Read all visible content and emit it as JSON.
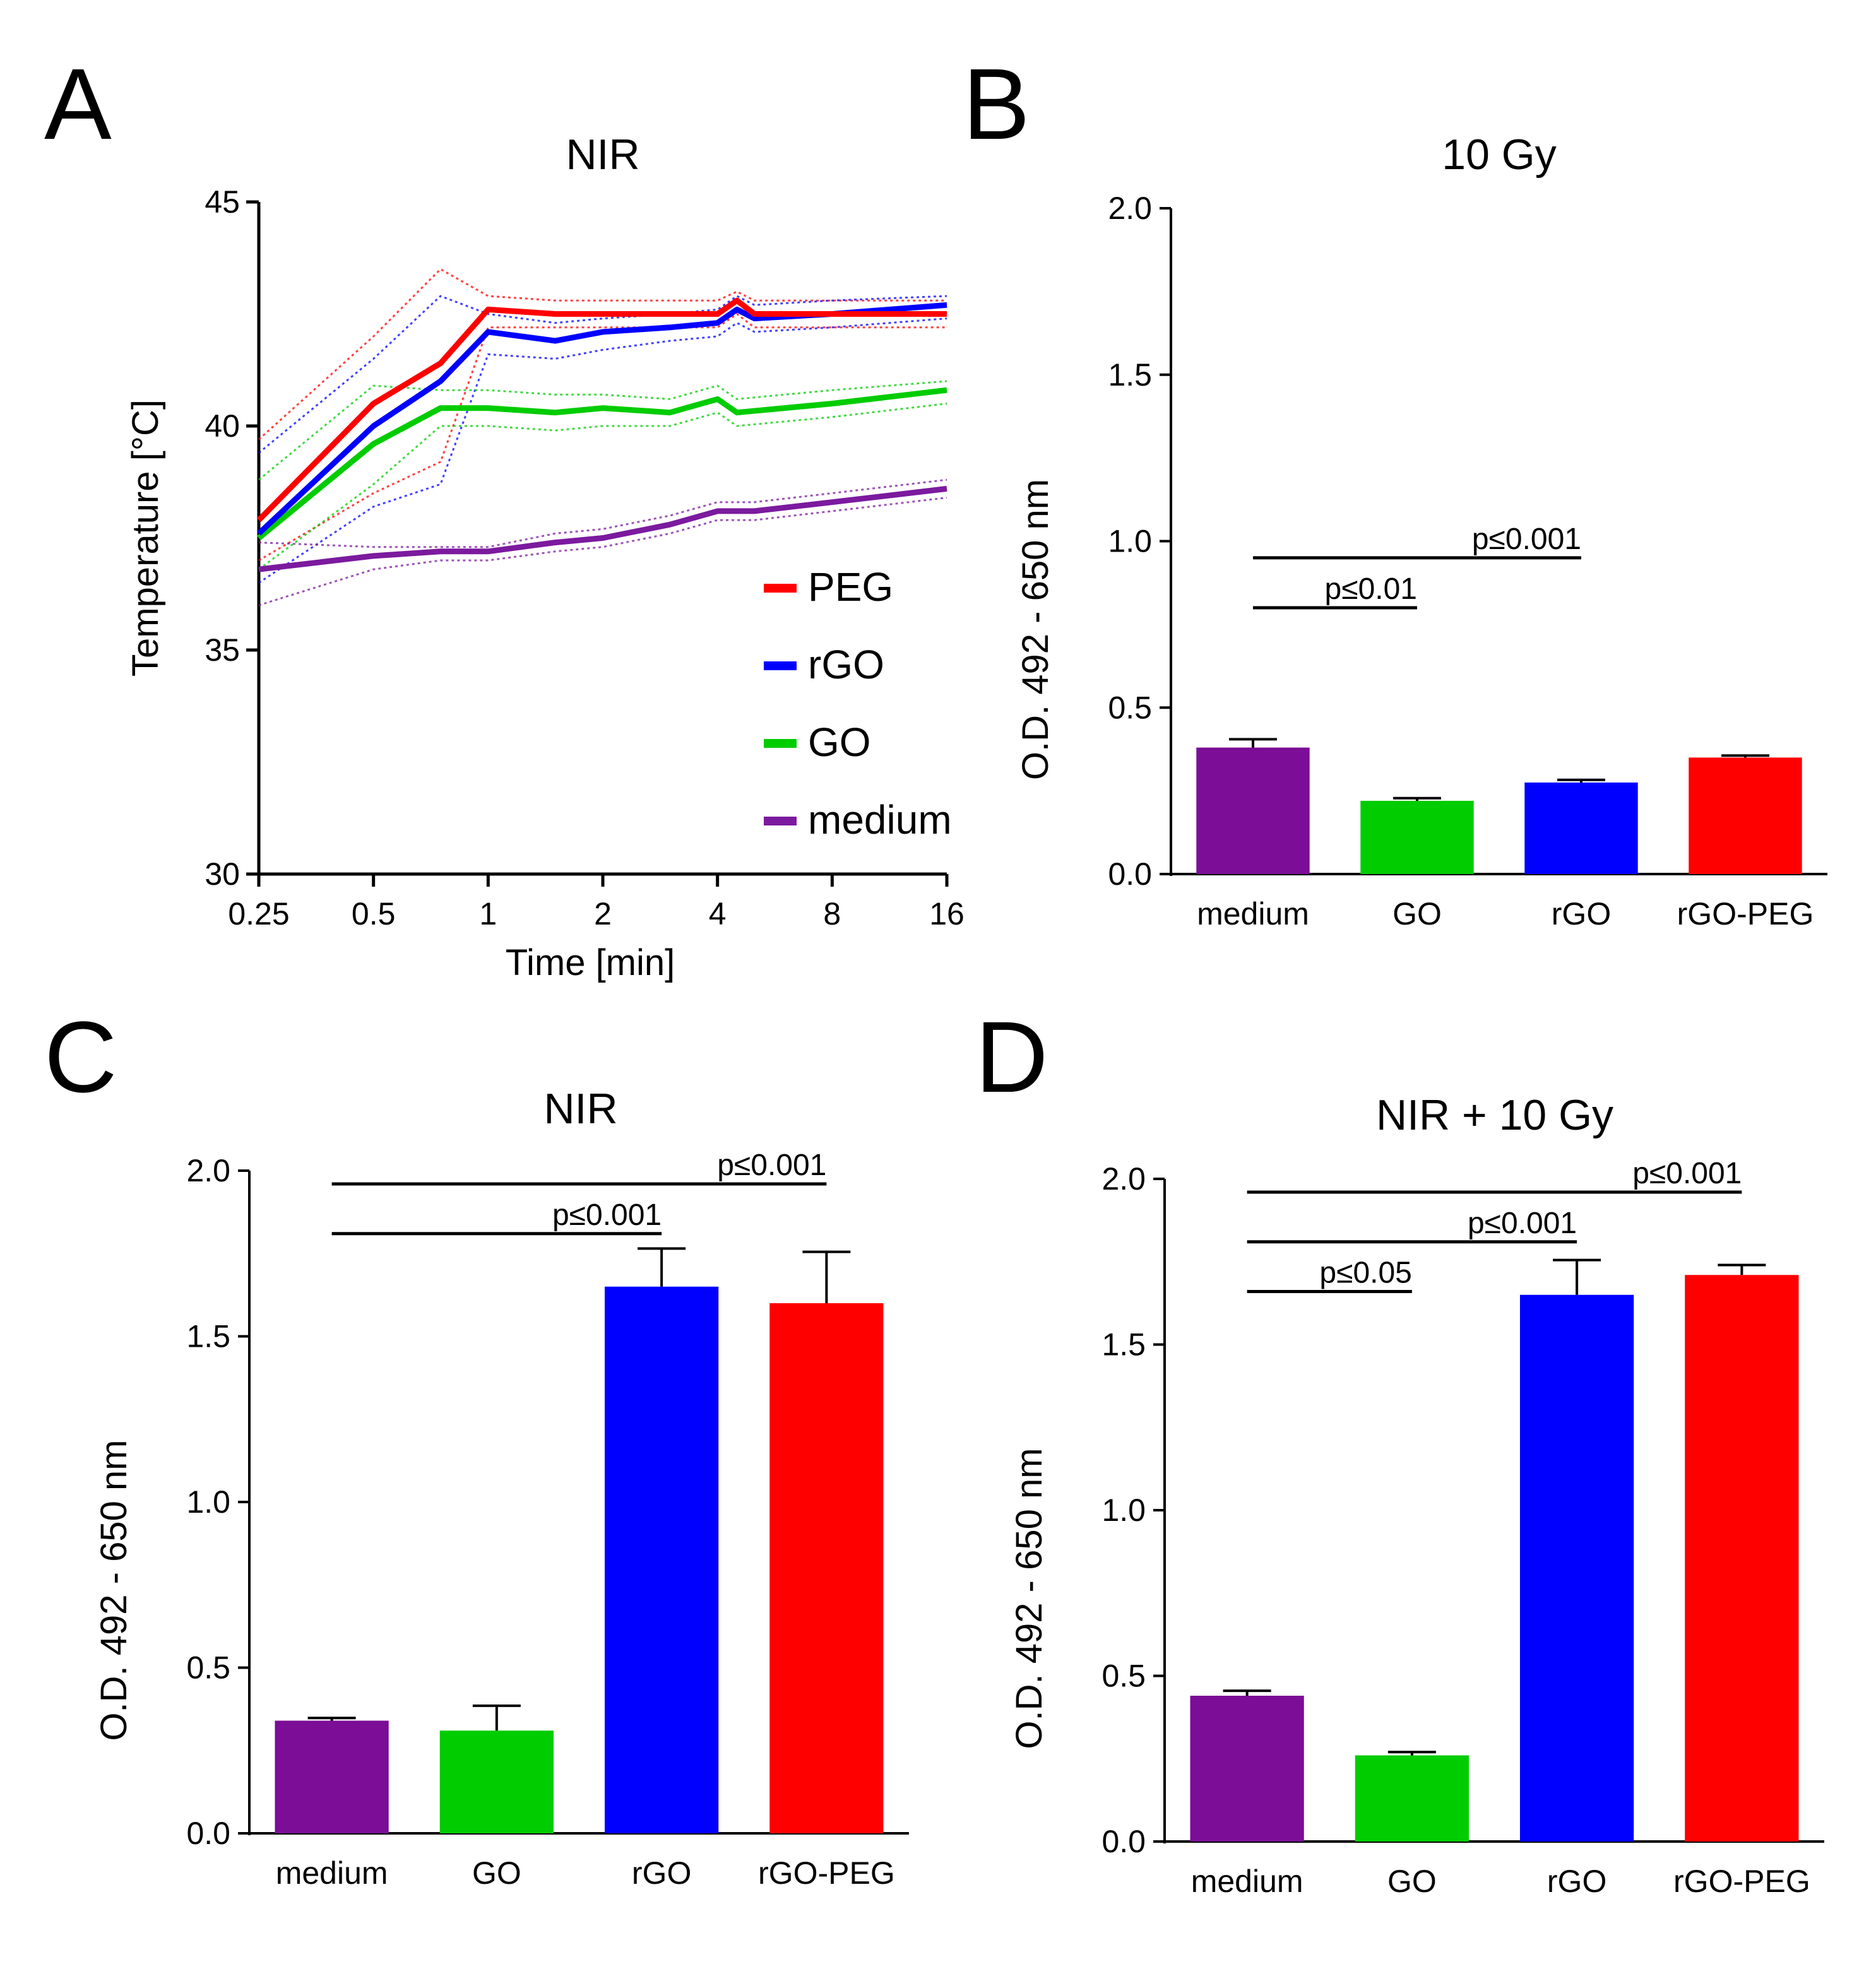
{
  "chart_data": [
    {
      "panel": "A",
      "type": "line",
      "title": "NIR",
      "xlabel": "Time [min]",
      "ylabel": "Temperature [°C]",
      "xscale": "log2",
      "xlim": [
        0.25,
        16
      ],
      "ylim": [
        30,
        45
      ],
      "xticks": [
        0.25,
        0.5,
        1,
        2,
        4,
        8,
        16
      ],
      "xtick_labels": [
        "0.25",
        "0.5",
        "1",
        "2",
        "4",
        "8",
        "16"
      ],
      "yticks": [
        30,
        35,
        40,
        45
      ],
      "ytick_labels": [
        "30",
        "35",
        "40",
        "45"
      ],
      "legend_position": "right",
      "series": [
        {
          "name": "PEG",
          "color": "#ff0000",
          "x": [
            0.25,
            0.5,
            0.75,
            1,
            1.5,
            2,
            3,
            4,
            4.5,
            5,
            8,
            16
          ],
          "y": [
            37.9,
            40.5,
            41.4,
            42.6,
            42.5,
            42.5,
            42.5,
            42.5,
            42.8,
            42.5,
            42.5,
            42.5
          ],
          "upper": [
            39.7,
            42.0,
            43.5,
            42.9,
            42.8,
            42.8,
            42.8,
            42.8,
            43.0,
            42.8,
            42.8,
            42.8
          ],
          "lower": [
            37.0,
            38.5,
            39.2,
            42.2,
            42.2,
            42.2,
            42.2,
            42.2,
            42.5,
            42.2,
            42.2,
            42.2
          ]
        },
        {
          "name": "rGO",
          "color": "#0000ff",
          "x": [
            0.25,
            0.5,
            0.75,
            1,
            1.5,
            2,
            3,
            4,
            4.5,
            5,
            8,
            16
          ],
          "y": [
            37.6,
            40.0,
            41.0,
            42.1,
            41.9,
            42.1,
            42.2,
            42.3,
            42.6,
            42.4,
            42.5,
            42.7
          ],
          "upper": [
            39.4,
            41.5,
            42.9,
            42.5,
            42.3,
            42.4,
            42.5,
            42.6,
            42.9,
            42.7,
            42.8,
            42.9
          ],
          "lower": [
            36.5,
            38.2,
            38.7,
            41.6,
            41.5,
            41.7,
            41.9,
            42.0,
            42.3,
            42.1,
            42.2,
            42.4
          ]
        },
        {
          "name": "GO",
          "color": "#00cc00",
          "x": [
            0.25,
            0.5,
            0.75,
            1,
            1.5,
            2,
            3,
            4,
            4.5,
            8,
            16
          ],
          "y": [
            37.5,
            39.6,
            40.4,
            40.4,
            40.3,
            40.4,
            40.3,
            40.6,
            40.3,
            40.5,
            40.8
          ],
          "upper": [
            38.8,
            40.9,
            40.8,
            40.8,
            40.7,
            40.7,
            40.6,
            40.9,
            40.6,
            40.8,
            41.0
          ],
          "lower": [
            36.8,
            38.7,
            40.0,
            40.0,
            39.9,
            40.0,
            40.0,
            40.3,
            40.0,
            40.2,
            40.5
          ]
        },
        {
          "name": "medium",
          "color": "#7b1a9e",
          "x": [
            0.25,
            0.5,
            0.75,
            1,
            1.5,
            2,
            3,
            4,
            5,
            8,
            16
          ],
          "y": [
            36.8,
            37.1,
            37.2,
            37.2,
            37.4,
            37.5,
            37.8,
            38.1,
            38.1,
            38.3,
            38.6
          ],
          "upper": [
            37.4,
            37.3,
            37.3,
            37.3,
            37.6,
            37.7,
            38.0,
            38.3,
            38.3,
            38.5,
            38.8
          ],
          "lower": [
            36.0,
            36.8,
            37.0,
            37.0,
            37.2,
            37.3,
            37.6,
            37.9,
            37.9,
            38.1,
            38.4
          ]
        }
      ]
    },
    {
      "panel": "B",
      "type": "bar",
      "title": "10 Gy",
      "xlabel": "",
      "ylabel": "O.D. 492 - 650 nm",
      "ylim": [
        0,
        2.0
      ],
      "yticks": [
        "0.0",
        "0.5",
        "1.0",
        "1.5",
        "2.0"
      ],
      "categories": [
        "medium",
        "GO",
        "rGO",
        "rGO-PEG"
      ],
      "values": [
        0.38,
        0.22,
        0.275,
        0.35
      ],
      "errors": [
        0.025,
        0.008,
        0.008,
        0.006
      ],
      "colors": [
        "#7b0d96",
        "#00cc00",
        "#0000ff",
        "#ff0000"
      ],
      "significance": [
        {
          "from": 0,
          "to": 2,
          "label": "p≤0.001",
          "y": 0.95
        },
        {
          "from": 0,
          "to": 1,
          "label": "p≤0.01",
          "y": 0.8
        }
      ]
    },
    {
      "panel": "C",
      "type": "bar",
      "title": "NIR",
      "xlabel": "",
      "ylabel": "O.D. 492 - 650 nm",
      "ylim": [
        0,
        2.0
      ],
      "yticks": [
        "0.0",
        "0.5",
        "1.0",
        "1.5",
        "2.0"
      ],
      "categories": [
        "medium",
        "GO",
        "rGO",
        "rGO-PEG"
      ],
      "values": [
        0.34,
        0.31,
        1.65,
        1.6
      ],
      "errors": [
        0.008,
        0.075,
        0.115,
        0.155
      ],
      "colors": [
        "#7b0d96",
        "#00cc00",
        "#0000ff",
        "#ff0000"
      ],
      "significance": [
        {
          "from": 0,
          "to": 3,
          "label": "p≤0.001",
          "y": 1.96
        },
        {
          "from": 0,
          "to": 2,
          "label": "p≤0.001",
          "y": 1.81
        }
      ]
    },
    {
      "panel": "D",
      "type": "bar",
      "title": "NIR + 10 Gy",
      "xlabel": "",
      "ylabel": "O.D. 492 - 650 nm",
      "ylim": [
        0,
        2.0
      ],
      "yticks": [
        "0.0",
        "0.5",
        "1.0",
        "1.5",
        "2.0"
      ],
      "categories": [
        "medium",
        "GO",
        "rGO",
        "rGO-PEG"
      ],
      "values": [
        0.44,
        0.26,
        1.65,
        1.71
      ],
      "errors": [
        0.015,
        0.01,
        0.105,
        0.03
      ],
      "colors": [
        "#7b0d96",
        "#00cc00",
        "#0000ff",
        "#ff0000"
      ],
      "significance": [
        {
          "from": 0,
          "to": 3,
          "label": "p≤0.001",
          "y": 1.96
        },
        {
          "from": 0,
          "to": 2,
          "label": "p≤0.001",
          "y": 1.81
        },
        {
          "from": 0,
          "to": 1,
          "label": "p≤0.05",
          "y": 1.66
        }
      ]
    }
  ]
}
